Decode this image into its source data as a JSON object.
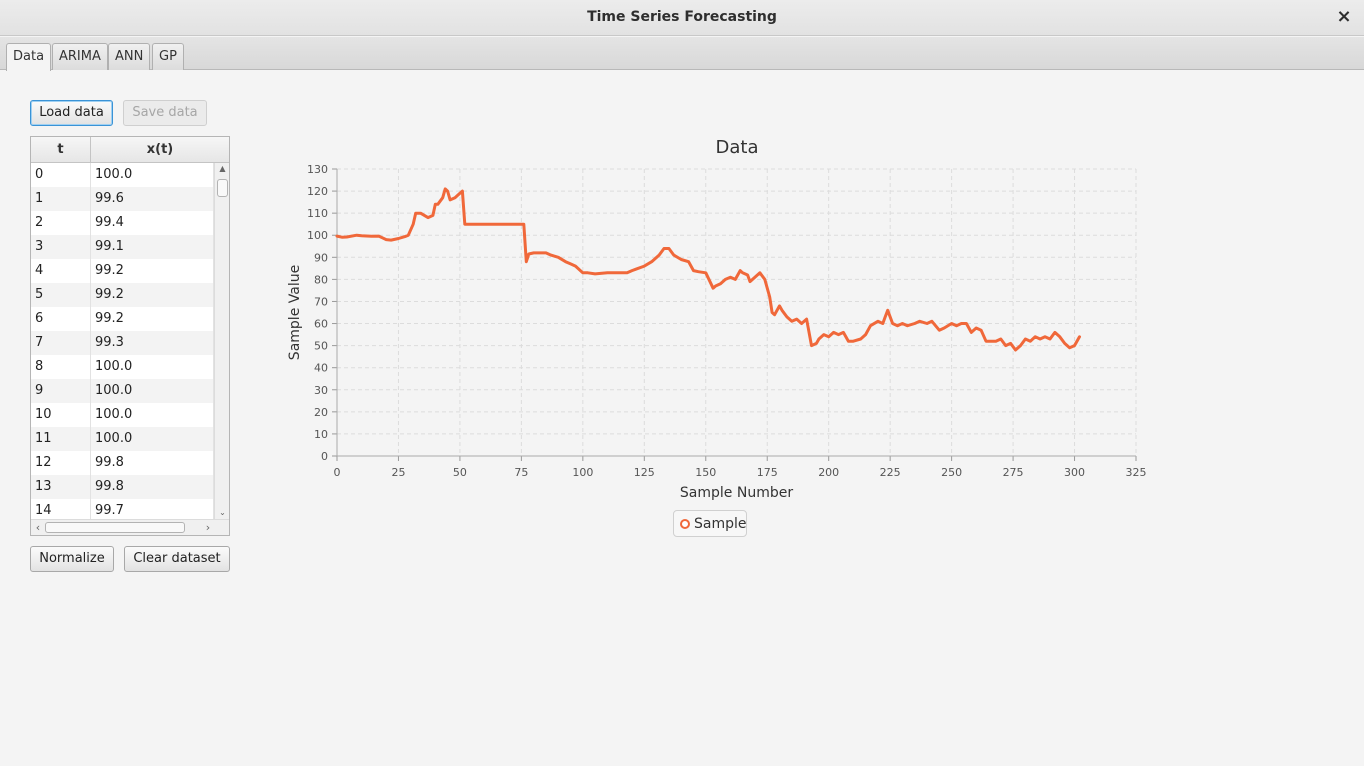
{
  "window": {
    "title": "Time Series Forecasting",
    "close_glyph": "×"
  },
  "tabs": [
    {
      "label": "Data",
      "active": true
    },
    {
      "label": "ARIMA",
      "active": false
    },
    {
      "label": "ANN",
      "active": false
    },
    {
      "label": "GP",
      "active": false
    }
  ],
  "toolbar": {
    "load_label": "Load data",
    "save_label": "Save data"
  },
  "table": {
    "columns": [
      "t",
      "x(t)"
    ],
    "rows": [
      [
        "0",
        "100.0"
      ],
      [
        "1",
        "99.6"
      ],
      [
        "2",
        "99.4"
      ],
      [
        "3",
        "99.1"
      ],
      [
        "4",
        "99.2"
      ],
      [
        "5",
        "99.2"
      ],
      [
        "6",
        "99.2"
      ],
      [
        "7",
        "99.3"
      ],
      [
        "8",
        "100.0"
      ],
      [
        "9",
        "100.0"
      ],
      [
        "10",
        "100.0"
      ],
      [
        "11",
        "100.0"
      ],
      [
        "12",
        "99.8"
      ],
      [
        "13",
        "99.8"
      ],
      [
        "14",
        "99.7"
      ]
    ]
  },
  "actions": {
    "normalize_label": "Normalize",
    "clear_label": "Clear dataset"
  },
  "chart_data": {
    "type": "line",
    "title": "Data",
    "xlabel": "Sample Number",
    "ylabel": "Sample Value",
    "xlim": [
      0,
      325
    ],
    "ylim": [
      0,
      130
    ],
    "xticks": [
      0,
      25,
      50,
      75,
      100,
      125,
      150,
      175,
      200,
      225,
      250,
      275,
      300,
      325
    ],
    "yticks": [
      0,
      10,
      20,
      30,
      40,
      50,
      60,
      70,
      80,
      90,
      100,
      110,
      120,
      130
    ],
    "grid": true,
    "legend_position": "bottom",
    "series": [
      {
        "name": "Sample",
        "color": "#f0683a",
        "x": [
          0,
          2,
          4,
          8,
          10,
          14,
          17,
          20,
          22,
          25,
          28,
          29,
          31,
          32,
          34,
          37,
          39,
          40,
          41,
          43,
          44,
          45,
          46,
          48,
          50,
          51,
          52,
          60,
          70,
          76,
          77,
          78,
          80,
          85,
          87,
          90,
          93,
          95,
          97,
          100,
          102,
          105,
          110,
          115,
          118,
          120,
          125,
          128,
          131,
          133,
          135,
          137,
          140,
          143,
          145,
          147,
          150,
          153,
          154,
          156,
          158,
          160,
          162,
          164,
          165,
          167,
          168,
          170,
          172,
          174,
          176,
          177,
          178,
          180,
          181,
          183,
          185,
          187,
          189,
          191,
          193,
          195,
          196,
          198,
          200,
          202,
          204,
          206,
          208,
          210,
          213,
          215,
          217,
          220,
          222,
          223,
          224,
          226,
          228,
          230,
          232,
          235,
          237,
          240,
          242,
          245,
          247,
          250,
          252,
          254,
          256,
          258,
          260,
          262,
          264,
          266,
          268,
          270,
          272,
          274,
          276,
          278,
          280,
          282,
          284,
          286,
          288,
          290,
          292,
          294,
          296,
          298,
          300,
          302
        ],
        "y": [
          99.6,
          99.1,
          99.2,
          100.0,
          99.8,
          99.5,
          99.6,
          98.0,
          97.8,
          98.5,
          99.5,
          100.0,
          105.0,
          110.0,
          110.0,
          108.0,
          109.0,
          114.0,
          114.0,
          117.0,
          121.0,
          120.0,
          116.0,
          117.0,
          119.0,
          120.0,
          105.0,
          105.0,
          105.0,
          105.0,
          88.0,
          91.5,
          92.0,
          92.0,
          91.0,
          90.0,
          88.0,
          87.0,
          86.0,
          83.0,
          83.0,
          82.5,
          83.0,
          83.0,
          83.0,
          84.0,
          86.0,
          88.0,
          91.0,
          94.0,
          94.0,
          91.0,
          89.0,
          88.0,
          84.0,
          83.5,
          83.0,
          76.0,
          77.0,
          78.0,
          80.0,
          81.0,
          80.0,
          84.0,
          83.0,
          82.0,
          79.0,
          81.0,
          83.0,
          80.0,
          72.0,
          65.0,
          64.0,
          68.0,
          66.0,
          63.0,
          61.0,
          62.0,
          60.0,
          62.0,
          50.0,
          51.0,
          53.0,
          55.0,
          54.0,
          56.0,
          55.0,
          56.0,
          52.0,
          52.0,
          53.0,
          55.0,
          59.0,
          61.0,
          60.0,
          63.0,
          66.0,
          60.0,
          59.0,
          60.0,
          59.0,
          60.0,
          61.0,
          60.0,
          61.0,
          57.0,
          58.0,
          60.0,
          59.0,
          60.0,
          60.0,
          56.0,
          58.0,
          57.0,
          52.0,
          52.0,
          52.0,
          53.0,
          50.0,
          51.0,
          48.0,
          50.0,
          53.0,
          52.0,
          54.0,
          53.0,
          54.0,
          53.0,
          56.0,
          54.0,
          51.0,
          49.0,
          50.0,
          54.0
        ]
      }
    ]
  }
}
